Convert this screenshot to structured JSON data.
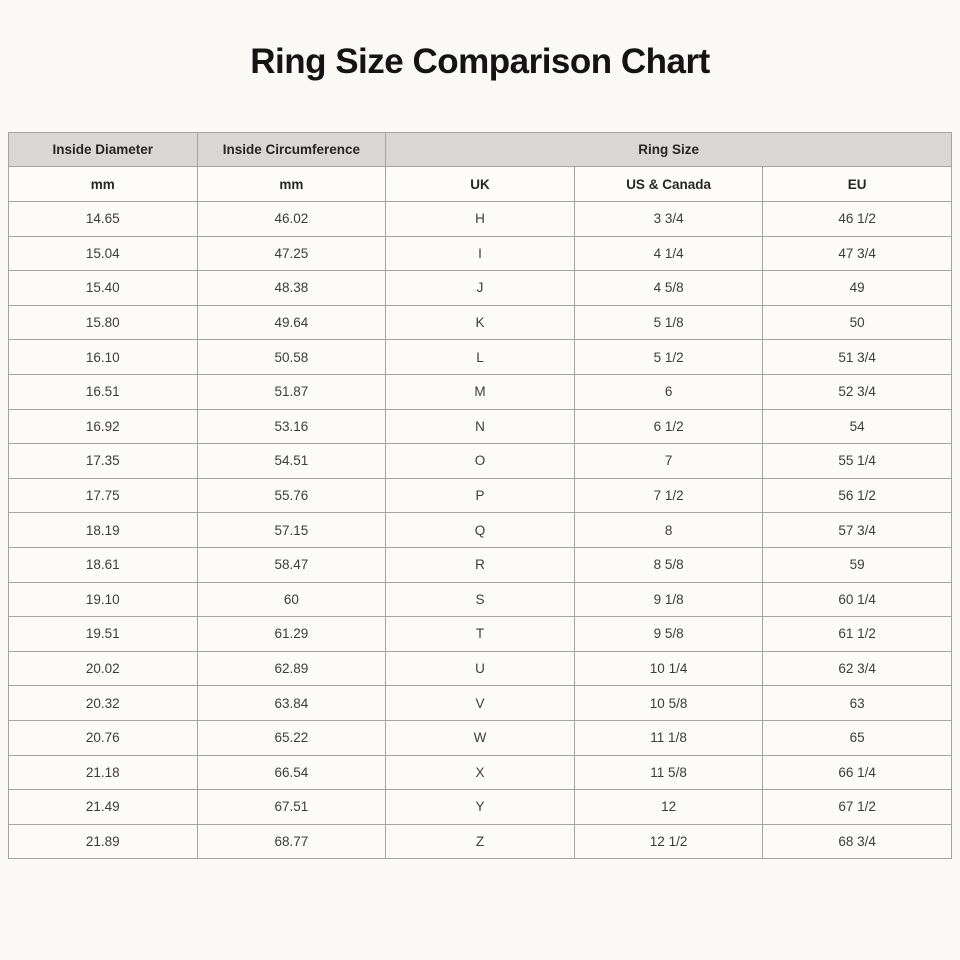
{
  "title": "Ring Size Comparison Chart",
  "colors": {
    "page_background": "#faf9f6",
    "header_background": "#d9d6d3",
    "cell_background": "#fcfbf9",
    "border": "#a6a4a1",
    "title_text": "#141414"
  },
  "chart_data": {
    "type": "table",
    "title": "Ring Size Comparison Chart",
    "column_groups": [
      {
        "label": "Inside Diameter",
        "colspan": 1
      },
      {
        "label": "Inside Circumference",
        "colspan": 1
      },
      {
        "label": "Ring Size",
        "colspan": 3
      }
    ],
    "columns": [
      "mm",
      "mm",
      "UK",
      "US & Canada",
      "EU"
    ],
    "rows": [
      [
        "14.65",
        "46.02",
        "H",
        "3 3/4",
        "46 1/2"
      ],
      [
        "15.04",
        "47.25",
        "I",
        "4 1/4",
        "47 3/4"
      ],
      [
        "15.40",
        "48.38",
        "J",
        "4 5/8",
        "49"
      ],
      [
        "15.80",
        "49.64",
        "K",
        "5 1/8",
        "50"
      ],
      [
        "16.10",
        "50.58",
        "L",
        "5 1/2",
        "51 3/4"
      ],
      [
        "16.51",
        "51.87",
        "M",
        "6",
        "52 3/4"
      ],
      [
        "16.92",
        "53.16",
        "N",
        "6 1/2",
        "54"
      ],
      [
        "17.35",
        "54.51",
        "O",
        "7",
        "55 1/4"
      ],
      [
        "17.75",
        "55.76",
        "P",
        "7 1/2",
        "56 1/2"
      ],
      [
        "18.19",
        "57.15",
        "Q",
        "8",
        "57 3/4"
      ],
      [
        "18.61",
        "58.47",
        "R",
        "8 5/8",
        "59"
      ],
      [
        "19.10",
        "60",
        "S",
        "9 1/8",
        "60 1/4"
      ],
      [
        "19.51",
        "61.29",
        "T",
        "9 5/8",
        "61 1/2"
      ],
      [
        "20.02",
        "62.89",
        "U",
        "10 1/4",
        "62 3/4"
      ],
      [
        "20.32",
        "63.84",
        "V",
        "10 5/8",
        "63"
      ],
      [
        "20.76",
        "65.22",
        "W",
        "11 1/8",
        "65"
      ],
      [
        "21.18",
        "66.54",
        "X",
        "11 5/8",
        "66 1/4"
      ],
      [
        "21.49",
        "67.51",
        "Y",
        "12",
        "67 1/2"
      ],
      [
        "21.89",
        "68.77",
        "Z",
        "12 1/2",
        "68 3/4"
      ]
    ]
  }
}
